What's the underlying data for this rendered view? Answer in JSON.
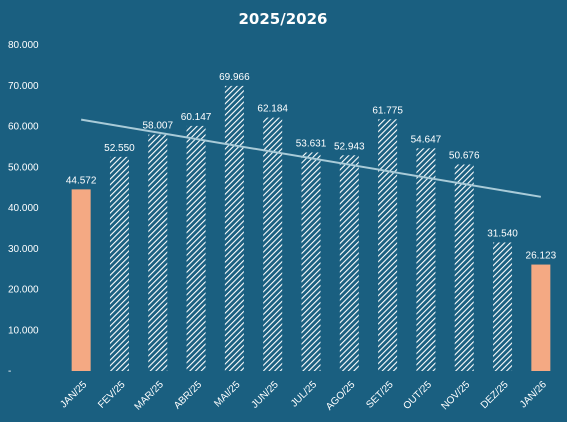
{
  "chart_data": {
    "type": "bar",
    "title": "2025/2026",
    "categories": [
      "JAN/25",
      "FEV/25",
      "MAR/25",
      "ABR/25",
      "MAI/25",
      "JUN/25",
      "JUL/25",
      "AGO/25",
      "SET/25",
      "OUT/25",
      "NOV/25",
      "DEZ/25",
      "JAN/26"
    ],
    "values": [
      44572,
      52550,
      58007,
      60147,
      69966,
      62184,
      53631,
      52943,
      61775,
      54647,
      50676,
      31540,
      26123
    ],
    "data_labels": [
      "44.572",
      "52.550",
      "58.007",
      "60.147",
      "69.966",
      "62.184",
      "53.631",
      "52.943",
      "61.775",
      "54.647",
      "50.676",
      "31.540",
      "26.123"
    ],
    "highlighted": [
      true,
      false,
      false,
      false,
      false,
      false,
      false,
      false,
      false,
      false,
      false,
      false,
      true
    ],
    "ylim": [
      0,
      80000
    ],
    "yticks": [
      0,
      10000,
      20000,
      30000,
      40000,
      50000,
      60000,
      70000,
      80000
    ],
    "ytick_labels": [
      "-",
      "10.000",
      "20.000",
      "30.000",
      "40.000",
      "50.000",
      "60.000",
      "70.000",
      "80.000"
    ],
    "trendline": true,
    "grid": false,
    "legend": "none",
    "colors": {
      "background": "#1a5f80",
      "highlight_bar": "#f4a983",
      "hatch_bar": "#ffffff",
      "trendline": "#a9cbd8",
      "text": "#ffffff"
    }
  }
}
